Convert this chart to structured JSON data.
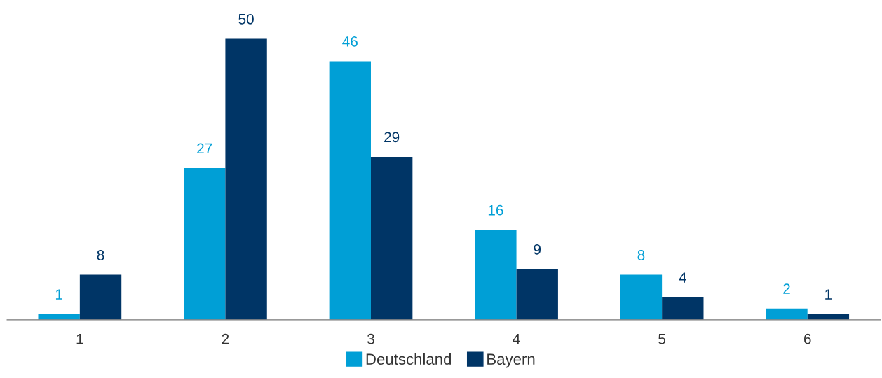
{
  "chart_data": {
    "type": "bar",
    "categories": [
      "1",
      "2",
      "3",
      "4",
      "5",
      "6"
    ],
    "series": [
      {
        "name": "Deutschland",
        "color": "#009fd6",
        "values": [
          1,
          27,
          46,
          16,
          8,
          2
        ]
      },
      {
        "name": "Bayern",
        "color": "#003566",
        "values": [
          8,
          50,
          29,
          9,
          4,
          1
        ]
      }
    ],
    "data_labels": true,
    "legend": "bottom",
    "grid": false
  }
}
